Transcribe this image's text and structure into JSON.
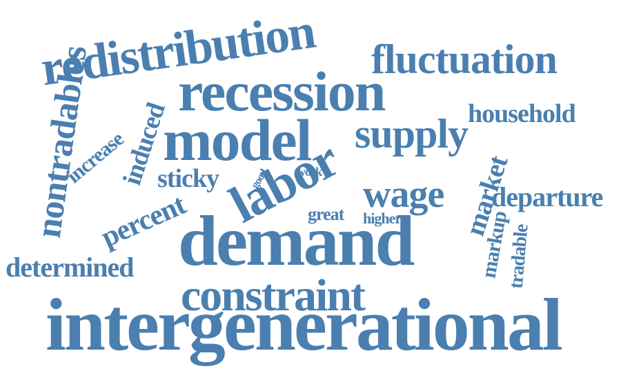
{
  "color": "#4a7fb0",
  "words": {
    "intergenerational": "intergenerational",
    "demand": "demand",
    "constraint": "constraint",
    "redistribution": "redistribution",
    "recession": "recession",
    "model": "model",
    "fluctuation": "fluctuation",
    "household": "household",
    "supply": "supply",
    "labor": "labor",
    "wage": "wage",
    "departure": "departure",
    "nontradables": "nontradables",
    "determined": "determined",
    "percent": "percent",
    "sticky": "sticky",
    "increase": "increase",
    "induced": "induced",
    "good": "good",
    "work": "work",
    "great": "great",
    "higher": "higher",
    "market": "market",
    "markup": "markup",
    "tradable": "tradable"
  }
}
